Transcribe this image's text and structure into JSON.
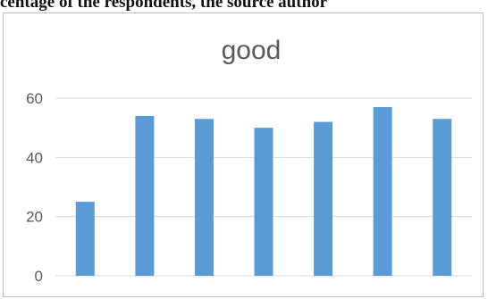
{
  "caption": "centage of the respondents, the source author",
  "chart_data": {
    "type": "bar",
    "title": "good",
    "xlabel": "",
    "ylabel": "",
    "categories": [
      "",
      "",
      "",
      "",
      "",
      "",
      ""
    ],
    "values": [
      25,
      54,
      53,
      50,
      52,
      57,
      53
    ],
    "ylim": [
      0,
      60
    ],
    "yticks": [
      0,
      20,
      40,
      60
    ],
    "grid": true,
    "legend": "none",
    "bar_color": "#5b9bd5",
    "grid_color": "#d9d9d9"
  }
}
